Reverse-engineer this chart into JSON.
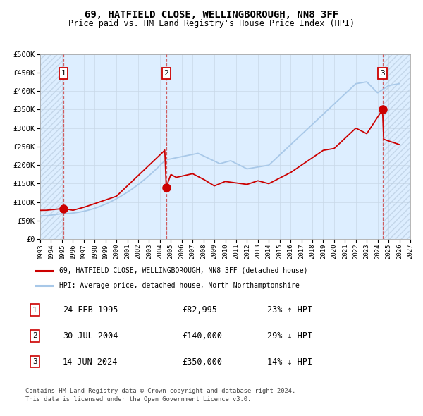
{
  "title": "69, HATFIELD CLOSE, WELLINGBOROUGH, NN8 3FF",
  "subtitle": "Price paid vs. HM Land Registry's House Price Index (HPI)",
  "legend_line1": "69, HATFIELD CLOSE, WELLINGBOROUGH, NN8 3FF (detached house)",
  "legend_line2": "HPI: Average price, detached house, North Northamptonshire",
  "footer1": "Contains HM Land Registry data © Crown copyright and database right 2024.",
  "footer2": "This data is licensed under the Open Government Licence v3.0.",
  "sales": [
    {
      "num": 1,
      "date_label": "24-FEB-1995",
      "price": 82995,
      "pct": "23% ↑ HPI",
      "year": 1995.13
    },
    {
      "num": 2,
      "date_label": "30-JUL-2004",
      "price": 140000,
      "pct": "29% ↓ HPI",
      "year": 2004.58
    },
    {
      "num": 3,
      "date_label": "14-JUN-2024",
      "price": 350000,
      "pct": "14% ↓ HPI",
      "year": 2024.45
    }
  ],
  "hpi_color": "#a8c8e8",
  "price_color": "#cc0000",
  "sale_dot_color": "#cc0000",
  "vline_color": "#cc4444",
  "shade_color": "#ddeeff",
  "hatch_color": "#b8cce0",
  "grid_color": "#c8d8e8",
  "background_color": "#ffffff",
  "ylim": [
    0,
    500000
  ],
  "yticks": [
    0,
    50000,
    100000,
    150000,
    200000,
    250000,
    300000,
    350000,
    400000,
    450000,
    500000
  ],
  "xlim_start": 1993.0,
  "xlim_end": 2027.0,
  "xticks": [
    1993,
    1994,
    1995,
    1996,
    1997,
    1998,
    1999,
    2000,
    2001,
    2002,
    2003,
    2004,
    2005,
    2006,
    2007,
    2008,
    2009,
    2010,
    2011,
    2012,
    2013,
    2014,
    2015,
    2016,
    2017,
    2018,
    2019,
    2020,
    2021,
    2022,
    2023,
    2024,
    2025,
    2026,
    2027
  ]
}
